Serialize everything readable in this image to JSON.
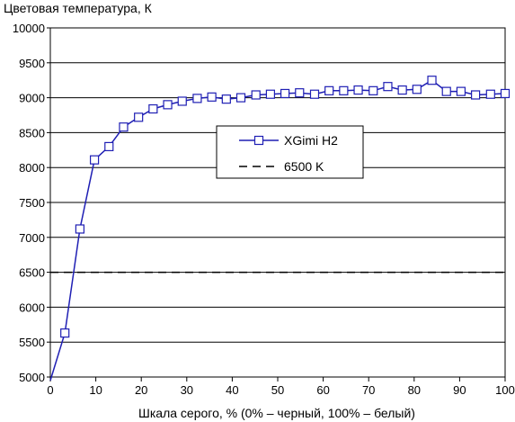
{
  "chart_data": {
    "type": "line",
    "title": "",
    "ylabel": "Цветовая температура, К",
    "xlabel": "Шкала серого, % (0% – черный, 100% – белый)",
    "xlim": [
      0,
      100
    ],
    "ylim": [
      5000,
      10000
    ],
    "xticks": [
      0,
      10,
      20,
      30,
      40,
      50,
      60,
      70,
      80,
      90,
      100
    ],
    "yticks": [
      5000,
      5500,
      6000,
      6500,
      7000,
      7500,
      8000,
      8500,
      9000,
      9500,
      10000
    ],
    "grid": "horizontal",
    "legend_position": "center",
    "series": [
      {
        "name": "XGimi H2",
        "color": "#1f1fb4",
        "marker": "square",
        "x": [
          0,
          3.2,
          6.5,
          9.7,
          12.9,
          16.1,
          19.4,
          22.6,
          25.8,
          29.0,
          32.3,
          35.5,
          38.7,
          41.9,
          45.2,
          48.4,
          51.6,
          54.8,
          58.1,
          61.3,
          64.5,
          67.7,
          71.0,
          74.2,
          77.4,
          80.6,
          83.9,
          87.1,
          90.3,
          93.5,
          96.8,
          100
        ],
        "y": [
          4950,
          5630,
          7120,
          8110,
          8300,
          8580,
          8720,
          8840,
          8900,
          8950,
          8990,
          9010,
          8980,
          9000,
          9040,
          9050,
          9060,
          9070,
          9050,
          9100,
          9100,
          9110,
          9100,
          9160,
          9110,
          9120,
          9250,
          9090,
          9090,
          9040,
          9050,
          9060
        ]
      },
      {
        "name": "6500 K",
        "color": "#000000",
        "marker": "none",
        "dashed": true,
        "x": [
          0,
          100
        ],
        "y": [
          6500,
          6500
        ]
      }
    ]
  }
}
